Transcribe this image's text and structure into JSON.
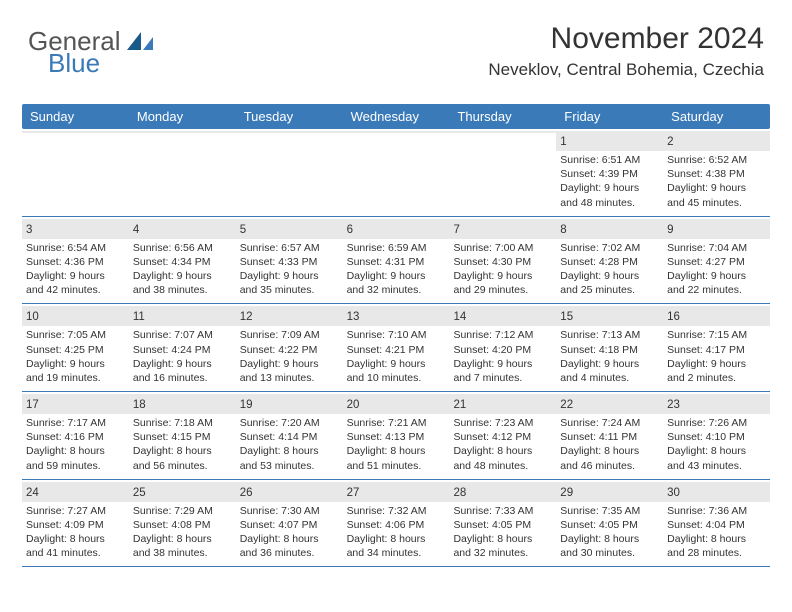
{
  "logo": {
    "text_general": "General",
    "text_blue": "Blue",
    "shape_color_dark": "#1a5a8a",
    "shape_color_light": "#3a7ab8"
  },
  "header": {
    "title": "November 2024",
    "location": "Neveklov, Central Bohemia, Czechia"
  },
  "colors": {
    "header_bar": "#3a7ab8",
    "day_shade": "#e8e8e8",
    "border": "#3a7ab8",
    "text": "#333333",
    "bg": "#ffffff"
  },
  "weekdays": [
    "Sunday",
    "Monday",
    "Tuesday",
    "Wednesday",
    "Thursday",
    "Friday",
    "Saturday"
  ],
  "weeks": [
    [
      {
        "empty": true
      },
      {
        "empty": true
      },
      {
        "empty": true
      },
      {
        "empty": true
      },
      {
        "empty": true
      },
      {
        "day": "1",
        "sunrise": "Sunrise: 6:51 AM",
        "sunset": "Sunset: 4:39 PM",
        "daylight1": "Daylight: 9 hours",
        "daylight2": "and 48 minutes."
      },
      {
        "day": "2",
        "sunrise": "Sunrise: 6:52 AM",
        "sunset": "Sunset: 4:38 PM",
        "daylight1": "Daylight: 9 hours",
        "daylight2": "and 45 minutes."
      }
    ],
    [
      {
        "day": "3",
        "sunrise": "Sunrise: 6:54 AM",
        "sunset": "Sunset: 4:36 PM",
        "daylight1": "Daylight: 9 hours",
        "daylight2": "and 42 minutes."
      },
      {
        "day": "4",
        "sunrise": "Sunrise: 6:56 AM",
        "sunset": "Sunset: 4:34 PM",
        "daylight1": "Daylight: 9 hours",
        "daylight2": "and 38 minutes."
      },
      {
        "day": "5",
        "sunrise": "Sunrise: 6:57 AM",
        "sunset": "Sunset: 4:33 PM",
        "daylight1": "Daylight: 9 hours",
        "daylight2": "and 35 minutes."
      },
      {
        "day": "6",
        "sunrise": "Sunrise: 6:59 AM",
        "sunset": "Sunset: 4:31 PM",
        "daylight1": "Daylight: 9 hours",
        "daylight2": "and 32 minutes."
      },
      {
        "day": "7",
        "sunrise": "Sunrise: 7:00 AM",
        "sunset": "Sunset: 4:30 PM",
        "daylight1": "Daylight: 9 hours",
        "daylight2": "and 29 minutes."
      },
      {
        "day": "8",
        "sunrise": "Sunrise: 7:02 AM",
        "sunset": "Sunset: 4:28 PM",
        "daylight1": "Daylight: 9 hours",
        "daylight2": "and 25 minutes."
      },
      {
        "day": "9",
        "sunrise": "Sunrise: 7:04 AM",
        "sunset": "Sunset: 4:27 PM",
        "daylight1": "Daylight: 9 hours",
        "daylight2": "and 22 minutes."
      }
    ],
    [
      {
        "day": "10",
        "sunrise": "Sunrise: 7:05 AM",
        "sunset": "Sunset: 4:25 PM",
        "daylight1": "Daylight: 9 hours",
        "daylight2": "and 19 minutes."
      },
      {
        "day": "11",
        "sunrise": "Sunrise: 7:07 AM",
        "sunset": "Sunset: 4:24 PM",
        "daylight1": "Daylight: 9 hours",
        "daylight2": "and 16 minutes."
      },
      {
        "day": "12",
        "sunrise": "Sunrise: 7:09 AM",
        "sunset": "Sunset: 4:22 PM",
        "daylight1": "Daylight: 9 hours",
        "daylight2": "and 13 minutes."
      },
      {
        "day": "13",
        "sunrise": "Sunrise: 7:10 AM",
        "sunset": "Sunset: 4:21 PM",
        "daylight1": "Daylight: 9 hours",
        "daylight2": "and 10 minutes."
      },
      {
        "day": "14",
        "sunrise": "Sunrise: 7:12 AM",
        "sunset": "Sunset: 4:20 PM",
        "daylight1": "Daylight: 9 hours",
        "daylight2": "and 7 minutes."
      },
      {
        "day": "15",
        "sunrise": "Sunrise: 7:13 AM",
        "sunset": "Sunset: 4:18 PM",
        "daylight1": "Daylight: 9 hours",
        "daylight2": "and 4 minutes."
      },
      {
        "day": "16",
        "sunrise": "Sunrise: 7:15 AM",
        "sunset": "Sunset: 4:17 PM",
        "daylight1": "Daylight: 9 hours",
        "daylight2": "and 2 minutes."
      }
    ],
    [
      {
        "day": "17",
        "sunrise": "Sunrise: 7:17 AM",
        "sunset": "Sunset: 4:16 PM",
        "daylight1": "Daylight: 8 hours",
        "daylight2": "and 59 minutes."
      },
      {
        "day": "18",
        "sunrise": "Sunrise: 7:18 AM",
        "sunset": "Sunset: 4:15 PM",
        "daylight1": "Daylight: 8 hours",
        "daylight2": "and 56 minutes."
      },
      {
        "day": "19",
        "sunrise": "Sunrise: 7:20 AM",
        "sunset": "Sunset: 4:14 PM",
        "daylight1": "Daylight: 8 hours",
        "daylight2": "and 53 minutes."
      },
      {
        "day": "20",
        "sunrise": "Sunrise: 7:21 AM",
        "sunset": "Sunset: 4:13 PM",
        "daylight1": "Daylight: 8 hours",
        "daylight2": "and 51 minutes."
      },
      {
        "day": "21",
        "sunrise": "Sunrise: 7:23 AM",
        "sunset": "Sunset: 4:12 PM",
        "daylight1": "Daylight: 8 hours",
        "daylight2": "and 48 minutes."
      },
      {
        "day": "22",
        "sunrise": "Sunrise: 7:24 AM",
        "sunset": "Sunset: 4:11 PM",
        "daylight1": "Daylight: 8 hours",
        "daylight2": "and 46 minutes."
      },
      {
        "day": "23",
        "sunrise": "Sunrise: 7:26 AM",
        "sunset": "Sunset: 4:10 PM",
        "daylight1": "Daylight: 8 hours",
        "daylight2": "and 43 minutes."
      }
    ],
    [
      {
        "day": "24",
        "sunrise": "Sunrise: 7:27 AM",
        "sunset": "Sunset: 4:09 PM",
        "daylight1": "Daylight: 8 hours",
        "daylight2": "and 41 minutes."
      },
      {
        "day": "25",
        "sunrise": "Sunrise: 7:29 AM",
        "sunset": "Sunset: 4:08 PM",
        "daylight1": "Daylight: 8 hours",
        "daylight2": "and 38 minutes."
      },
      {
        "day": "26",
        "sunrise": "Sunrise: 7:30 AM",
        "sunset": "Sunset: 4:07 PM",
        "daylight1": "Daylight: 8 hours",
        "daylight2": "and 36 minutes."
      },
      {
        "day": "27",
        "sunrise": "Sunrise: 7:32 AM",
        "sunset": "Sunset: 4:06 PM",
        "daylight1": "Daylight: 8 hours",
        "daylight2": "and 34 minutes."
      },
      {
        "day": "28",
        "sunrise": "Sunrise: 7:33 AM",
        "sunset": "Sunset: 4:05 PM",
        "daylight1": "Daylight: 8 hours",
        "daylight2": "and 32 minutes."
      },
      {
        "day": "29",
        "sunrise": "Sunrise: 7:35 AM",
        "sunset": "Sunset: 4:05 PM",
        "daylight1": "Daylight: 8 hours",
        "daylight2": "and 30 minutes."
      },
      {
        "day": "30",
        "sunrise": "Sunrise: 7:36 AM",
        "sunset": "Sunset: 4:04 PM",
        "daylight1": "Daylight: 8 hours",
        "daylight2": "and 28 minutes."
      }
    ]
  ]
}
